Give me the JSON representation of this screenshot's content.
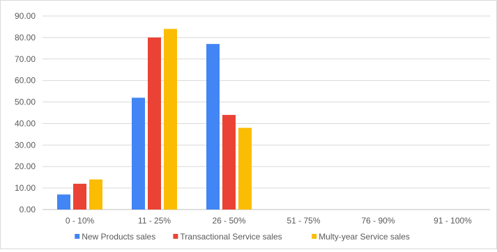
{
  "chart_data": {
    "type": "bar",
    "categories": [
      "0 - 10%",
      "11 - 25%",
      "26 - 50%",
      "51 - 75%",
      "76 - 90%",
      "91 - 100%"
    ],
    "series": [
      {
        "name": "New Products sales",
        "color": "#4285F4",
        "values": [
          7,
          52,
          77,
          0,
          0,
          0
        ]
      },
      {
        "name": "Transactional Service sales",
        "color": "#EA4335",
        "values": [
          12,
          80,
          44,
          0,
          0,
          0
        ]
      },
      {
        "name": "Multy-year Service sales",
        "color": "#FBBC04",
        "values": [
          14,
          84,
          38,
          0,
          0,
          0
        ]
      }
    ],
    "yticks": [
      "0.00",
      "10.00",
      "20.00",
      "30.00",
      "40.00",
      "50.00",
      "60.00",
      "70.00",
      "80.00",
      "90.00"
    ],
    "ylim": [
      0,
      90
    ],
    "grid": true,
    "legend": "bottom"
  }
}
